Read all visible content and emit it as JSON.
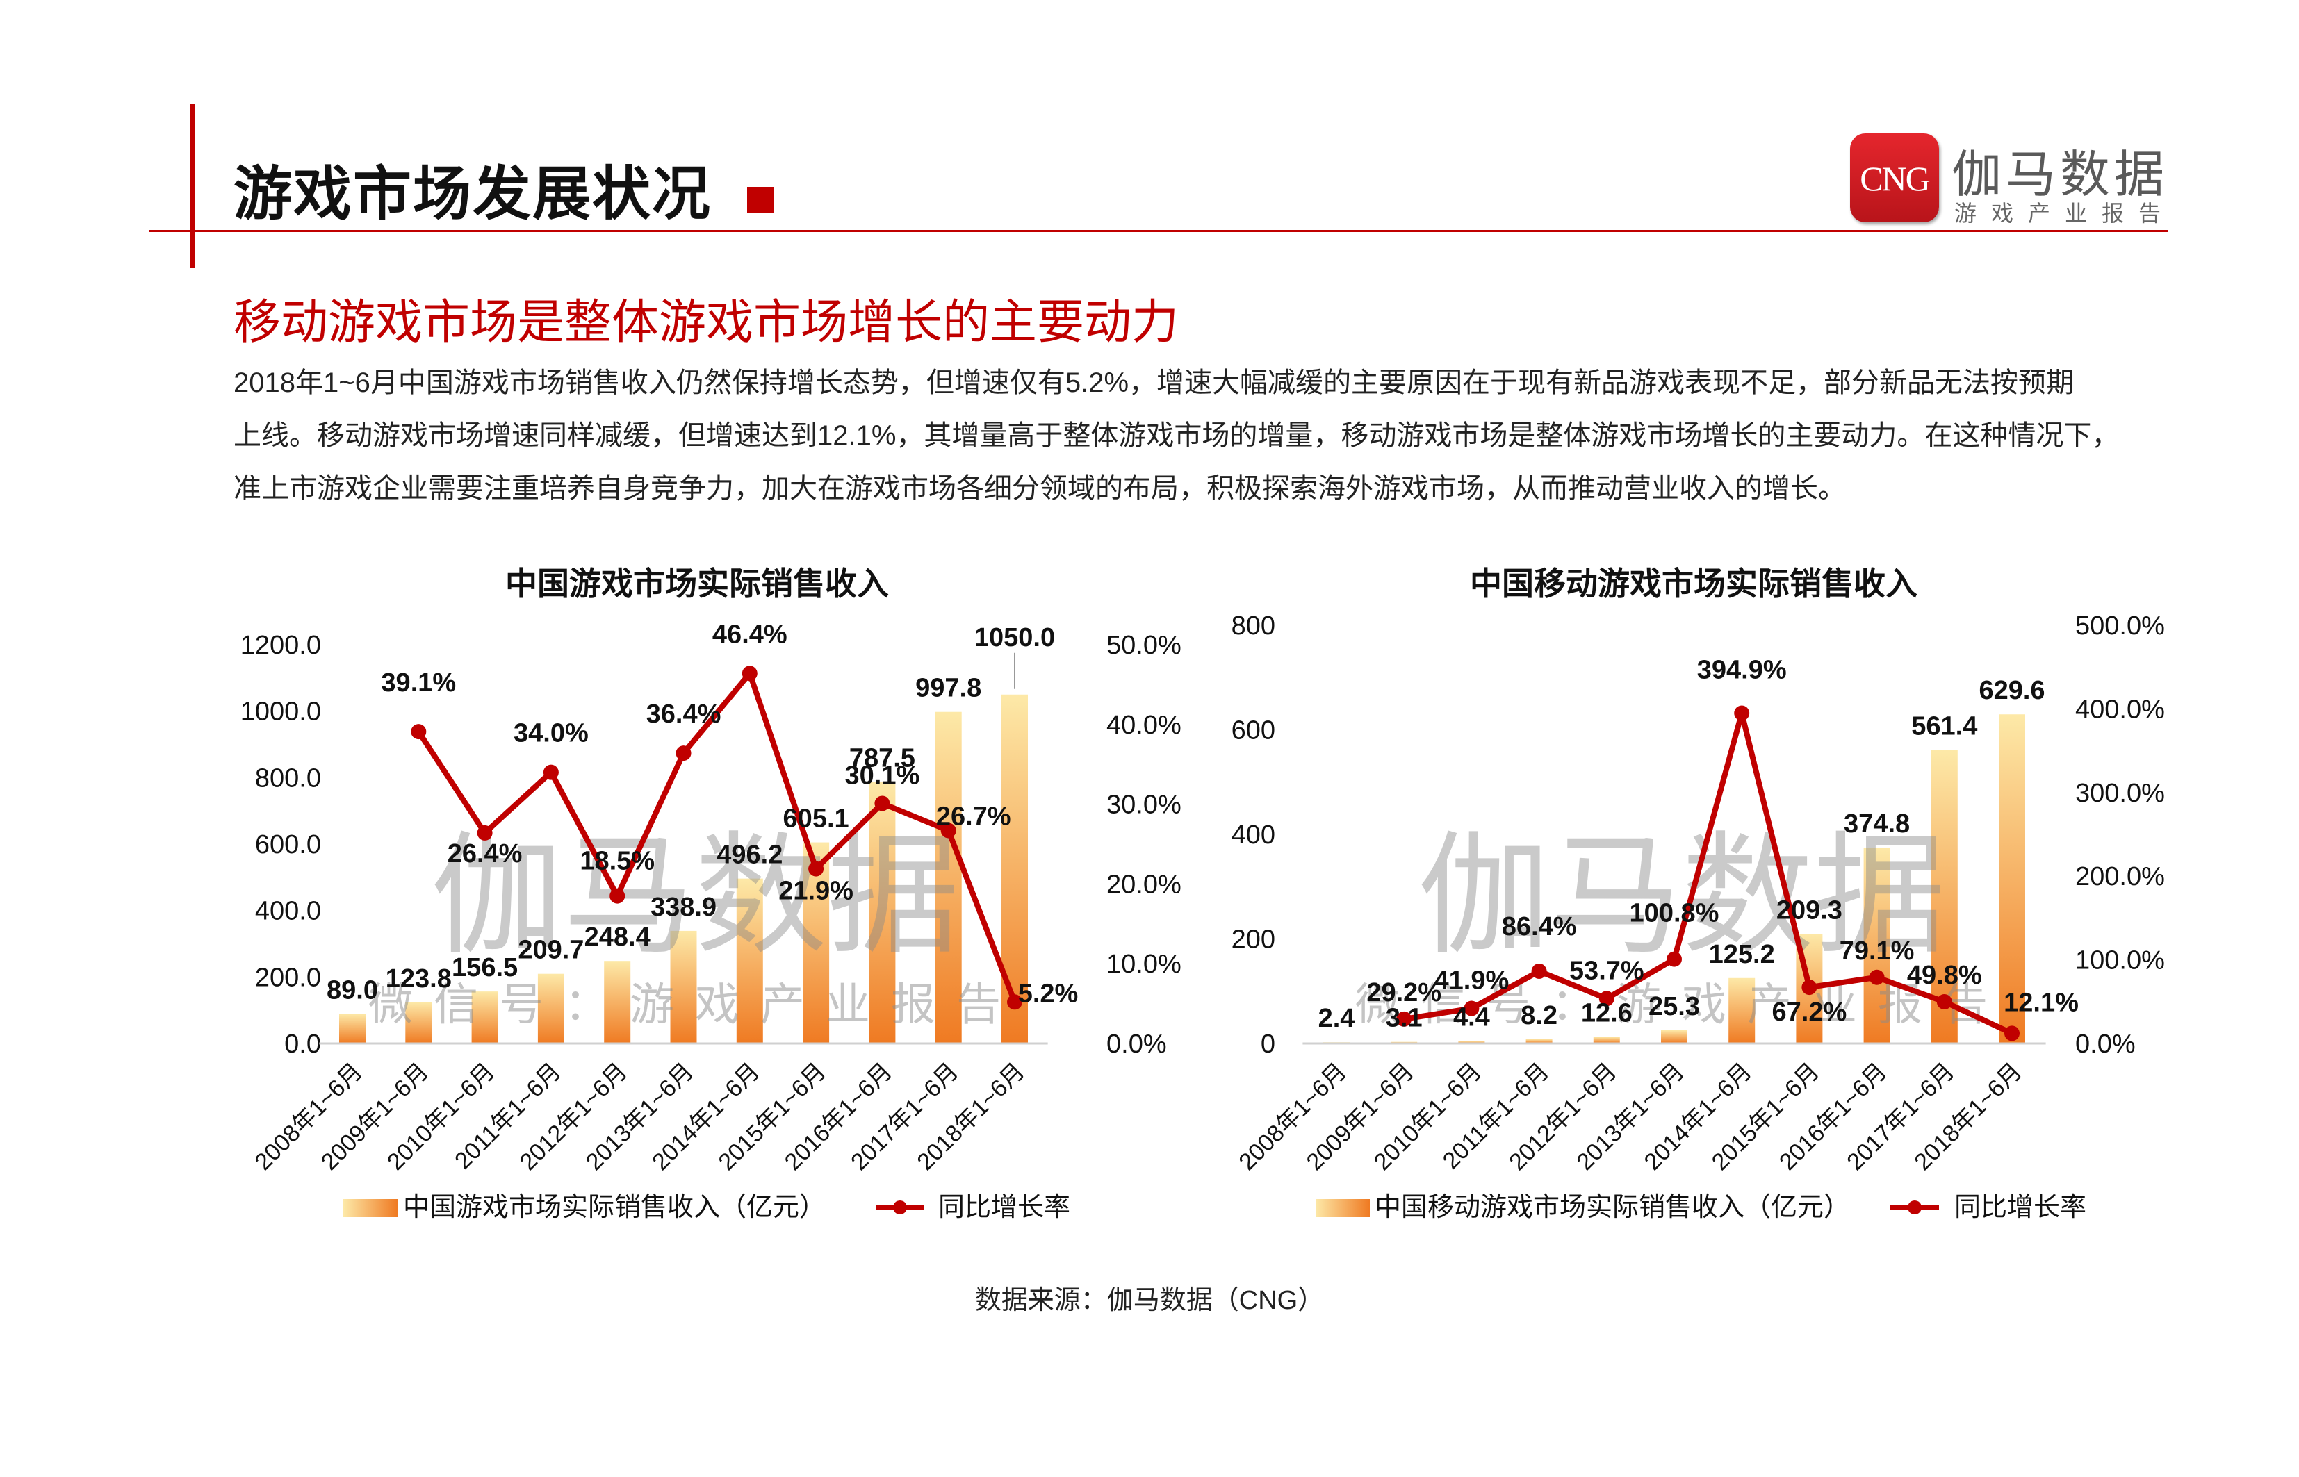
{
  "header": {
    "title": "游戏市场发展状况",
    "logo_mark": "CNG",
    "logo_name": "伽马数据",
    "logo_sub": "游戏产业报告"
  },
  "section": {
    "subtitle": "移动游戏市场是整体游戏市场增长的主要动力",
    "paragraph_lines": [
      "2018年1~6月中国游戏市场销售收入仍然保持增长态势，但增速仅有5.2%，增速大幅减缓的主要原因在于现有新品游戏表现不足，部分新品无法按预期",
      "上线。移动游戏市场增速同样减缓，但增速达到12.1%，其增量高于整体游戏市场的增量，移动游戏市场是整体游戏市场增长的主要动力。在这种情况下，",
      "准上市游戏企业需要注重培养自身竞争力，加大在游戏市场各细分领域的布局，积极探索海外游戏市场，从而推动营业收入的增长。"
    ]
  },
  "watermark": {
    "big": "伽马数据",
    "small": "微信号：游戏产业报告"
  },
  "footer": {
    "source": "数据来源：伽马数据（CNG）"
  },
  "colors": {
    "accent": "#c00000",
    "bar_top": "#fde9a8",
    "bar_bottom": "#ef7a22",
    "line": "#c00000"
  },
  "chart_data": [
    {
      "type": "bar",
      "title": "中国游戏市场实际销售收入",
      "categories": [
        "2008年1~6月",
        "2009年1~6月",
        "2010年1~6月",
        "2011年1~6月",
        "2012年1~6月",
        "2013年1~6月",
        "2014年1~6月",
        "2015年1~6月",
        "2016年1~6月",
        "2017年1~6月",
        "2018年1~6月"
      ],
      "series": [
        {
          "name": "中国游戏市场实际销售收入（亿元）",
          "type": "bar",
          "axis": "left",
          "values": [
            89.0,
            123.8,
            156.5,
            209.7,
            248.4,
            338.9,
            496.2,
            605.1,
            787.5,
            997.8,
            1050.0
          ],
          "labels": [
            "89.0",
            "123.8",
            "156.5",
            "209.7",
            "248.4",
            "338.9",
            "496.2",
            "605.1",
            "787.5",
            "997.8",
            "1050.0"
          ]
        },
        {
          "name": "同比增长率",
          "type": "line",
          "axis": "right",
          "values": [
            null,
            39.1,
            26.4,
            34.0,
            18.5,
            36.4,
            46.4,
            21.9,
            30.1,
            26.7,
            5.2
          ],
          "labels": [
            null,
            "39.1%",
            "26.4%",
            "34.0%",
            "18.5%",
            "36.4%",
            "46.4%",
            "21.9%",
            "30.1%",
            "26.7%",
            "5.2%"
          ]
        }
      ],
      "ylim_left": [
        0,
        1200
      ],
      "yticks_left": [
        "0.0",
        "200.0",
        "400.0",
        "600.0",
        "800.0",
        "1000.0",
        "1200.0"
      ],
      "ylim_right": [
        0,
        50
      ],
      "yticks_right": [
        "0.0%",
        "10.0%",
        "20.0%",
        "30.0%",
        "40.0%",
        "50.0%"
      ],
      "legend_position": "bottom"
    },
    {
      "type": "bar",
      "title": "中国移动游戏市场实际销售收入",
      "categories": [
        "2008年1~6月",
        "2009年1~6月",
        "2010年1~6月",
        "2011年1~6月",
        "2012年1~6月",
        "2013年1~6月",
        "2014年1~6月",
        "2015年1~6月",
        "2016年1~6月",
        "2017年1~6月",
        "2018年1~6月"
      ],
      "series": [
        {
          "name": "中国移动游戏市场实际销售收入（亿元）",
          "type": "bar",
          "axis": "left",
          "values": [
            2.4,
            3.1,
            4.4,
            8.2,
            12.6,
            25.3,
            125.2,
            209.3,
            374.8,
            561.4,
            629.6
          ],
          "labels": [
            "2.4",
            "3.1",
            "4.4",
            "8.2",
            "12.6",
            "25.3",
            "125.2",
            "209.3",
            "374.8",
            "561.4",
            "629.6"
          ]
        },
        {
          "name": "同比增长率",
          "type": "line",
          "axis": "right",
          "values": [
            null,
            29.2,
            41.9,
            86.4,
            53.7,
            100.8,
            394.9,
            67.2,
            79.1,
            49.8,
            12.1
          ],
          "labels": [
            null,
            "29.2%",
            "41.9%",
            "86.4%",
            "53.7%",
            "100.8%",
            "394.9%",
            "67.2%",
            "79.1%",
            "49.8%",
            "12.1%"
          ]
        }
      ],
      "ylim_left": [
        0,
        800
      ],
      "yticks_left": [
        "0",
        "200",
        "400",
        "600",
        "800"
      ],
      "ylim_right": [
        0,
        500
      ],
      "yticks_right": [
        "0.0%",
        "100.0%",
        "200.0%",
        "300.0%",
        "400.0%",
        "500.0%"
      ],
      "legend_position": "bottom"
    }
  ]
}
